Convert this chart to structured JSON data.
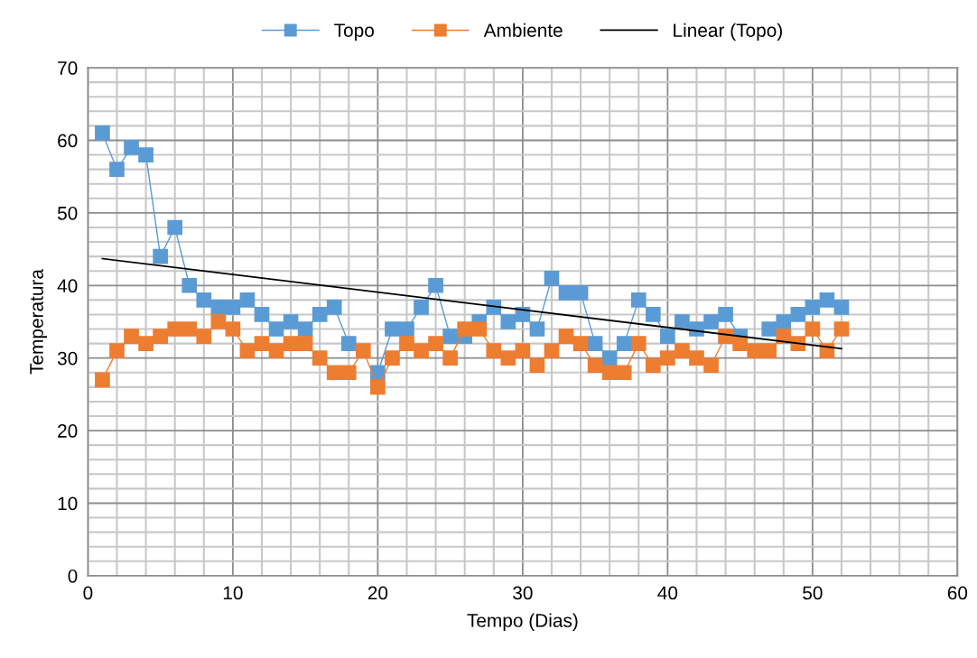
{
  "chart_data": {
    "type": "line",
    "xlabel": "Tempo (Dias)",
    "ylabel": "Temperatura",
    "x": [
      1,
      2,
      3,
      4,
      5,
      6,
      7,
      8,
      9,
      10,
      11,
      12,
      13,
      14,
      15,
      16,
      17,
      18,
      19,
      20,
      21,
      22,
      23,
      24,
      25,
      26,
      27,
      28,
      29,
      30,
      31,
      32,
      33,
      34,
      35,
      36,
      37,
      38,
      39,
      40,
      41,
      42,
      43,
      44,
      45,
      46,
      47,
      48,
      49,
      50,
      51,
      52
    ],
    "series": [
      {
        "name": "Topo",
        "color": "#5b9bd5",
        "marker": "square",
        "values": [
          61,
          56,
          59,
          58,
          44,
          48,
          40,
          38,
          37,
          37,
          38,
          36,
          34,
          35,
          34,
          36,
          37,
          32,
          null,
          28,
          34,
          34,
          37,
          40,
          33,
          33,
          35,
          37,
          35,
          36,
          34,
          41,
          39,
          39,
          32,
          30,
          32,
          38,
          36,
          33,
          35,
          34,
          35,
          36,
          33,
          null,
          34,
          35,
          36,
          37,
          38,
          37
        ]
      },
      {
        "name": "Ambiente",
        "color": "#ed7d31",
        "marker": "square",
        "values": [
          27,
          31,
          33,
          32,
          33,
          34,
          34,
          33,
          35,
          34,
          31,
          32,
          31,
          32,
          32,
          30,
          28,
          28,
          31,
          26,
          30,
          32,
          31,
          32,
          30,
          34,
          34,
          31,
          30,
          31,
          29,
          31,
          33,
          32,
          29,
          28,
          28,
          32,
          29,
          30,
          31,
          30,
          29,
          33,
          32,
          31,
          31,
          33,
          32,
          34,
          31,
          34
        ]
      },
      {
        "name": "Linear (Topo)",
        "color": "#000000",
        "marker": "none",
        "x": [
          1,
          52
        ],
        "values": [
          43.7,
          31.3
        ]
      }
    ],
    "xlim": [
      0,
      60
    ],
    "ylim": [
      0,
      70
    ],
    "xticks": [
      0,
      {
        "value": 2,
        "label": null
      },
      {
        "value": 4,
        "label": null
      },
      {
        "value": 6,
        "label": null
      },
      {
        "value": 8,
        "label": null
      },
      10,
      {
        "value": 12,
        "label": null
      },
      {
        "value": 14,
        "label": null
      },
      {
        "value": 16,
        "label": null
      },
      {
        "value": 18,
        "label": null
      },
      20,
      {
        "value": 22,
        "label": null
      },
      {
        "value": 24,
        "label": null
      },
      {
        "value": 26,
        "label": null
      },
      {
        "value": 28,
        "label": null
      },
      30,
      {
        "value": 32,
        "label": null
      },
      {
        "value": 34,
        "label": null
      },
      {
        "value": 36,
        "label": null
      },
      {
        "value": 38,
        "label": null
      },
      40,
      {
        "value": 42,
        "label": null
      },
      {
        "value": 44,
        "label": null
      },
      {
        "value": 46,
        "label": null
      },
      {
        "value": 48,
        "label": null
      },
      50,
      {
        "value": 52,
        "label": null
      },
      {
        "value": 54,
        "label": null
      },
      {
        "value": 56,
        "label": null
      },
      {
        "value": 58,
        "label": null
      },
      60
    ],
    "yticks": [
      0,
      {
        "value": 2,
        "label": null
      },
      {
        "value": 4,
        "label": null
      },
      {
        "value": 6,
        "label": null
      },
      {
        "value": 8,
        "label": null
      },
      10,
      {
        "value": 12,
        "label": null
      },
      {
        "value": 14,
        "label": null
      },
      {
        "value": 16,
        "label": null
      },
      {
        "value": 18,
        "label": null
      },
      20,
      {
        "value": 22,
        "label": null
      },
      {
        "value": 24,
        "label": null
      },
      {
        "value": 26,
        "label": null
      },
      {
        "value": 28,
        "label": null
      },
      30,
      {
        "value": 32,
        "label": null
      },
      {
        "value": 34,
        "label": null
      },
      {
        "value": 36,
        "label": null
      },
      {
        "value": 38,
        "label": null
      },
      40,
      {
        "value": 42,
        "label": null
      },
      {
        "value": 44,
        "label": null
      },
      {
        "value": 46,
        "label": null
      },
      {
        "value": 48,
        "label": null
      },
      50,
      {
        "value": 52,
        "label": null
      },
      {
        "value": 54,
        "label": null
      },
      {
        "value": 56,
        "label": null
      },
      {
        "value": 58,
        "label": null
      },
      60,
      {
        "value": 62,
        "label": null
      },
      {
        "value": 64,
        "label": null
      },
      {
        "value": 66,
        "label": null
      },
      {
        "value": 68,
        "label": null
      },
      70
    ],
    "grid": true,
    "legend": "top",
    "line_style": "solid"
  }
}
